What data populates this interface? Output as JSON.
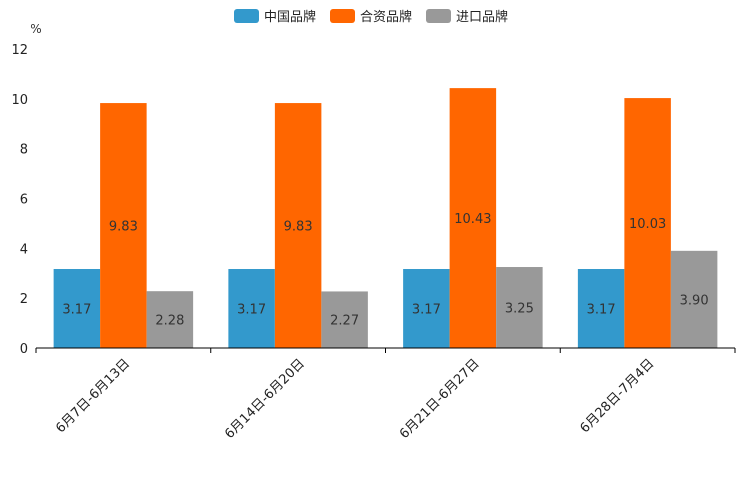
{
  "chart_data": {
    "type": "bar",
    "title": "",
    "xlabel": "",
    "ylabel": "%",
    "ylim": [
      0,
      12
    ],
    "yticks": [
      0,
      2,
      4,
      6,
      8,
      10,
      12
    ],
    "grid": false,
    "legend_position": "top-center",
    "categories": [
      "6月7日-6月13日",
      "6月14日-6月20日",
      "6月21日-6月27日",
      "6月28日-7月4日"
    ],
    "series": [
      {
        "name": "中国品牌",
        "color": "#3399cc",
        "values": [
          3.17,
          3.17,
          3.17,
          3.17
        ],
        "labels": [
          "3.17",
          "3.17",
          "3.17",
          "3.17"
        ]
      },
      {
        "name": "合资品牌",
        "color": "#ff6600",
        "values": [
          9.83,
          9.83,
          10.43,
          10.03
        ],
        "labels": [
          "9.83",
          "9.83",
          "10.43",
          "10.03"
        ]
      },
      {
        "name": "进口品牌",
        "color": "#999999",
        "values": [
          2.28,
          2.27,
          3.25,
          3.9
        ],
        "labels": [
          "2.28",
          "2.27",
          "3.25",
          "3.90"
        ]
      }
    ]
  }
}
